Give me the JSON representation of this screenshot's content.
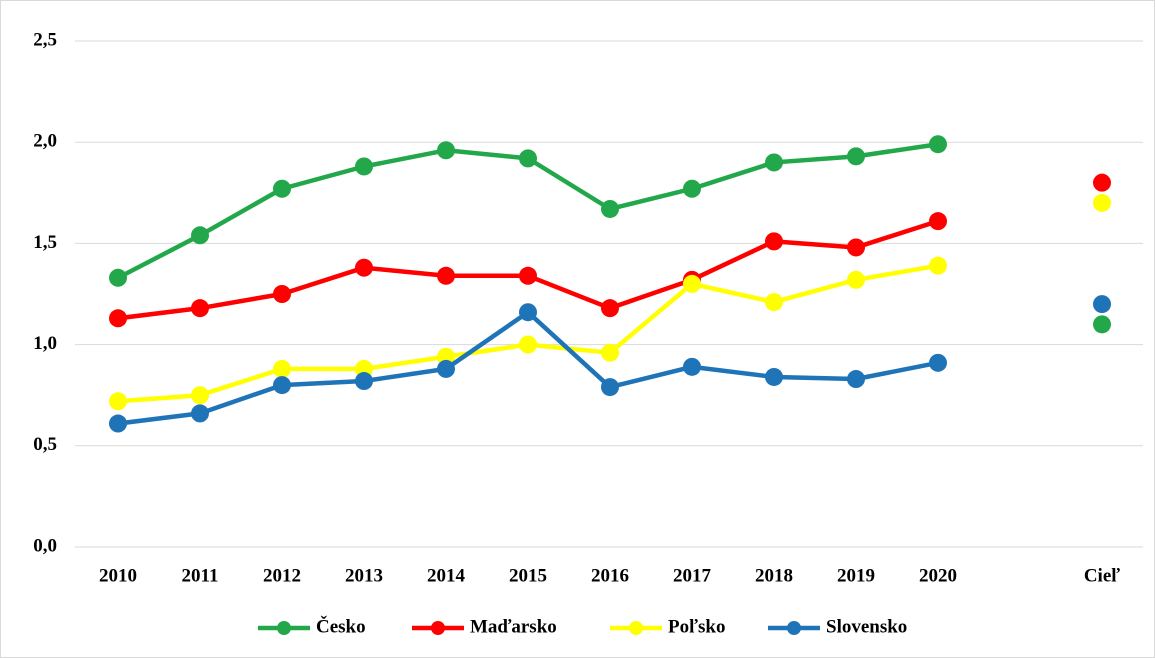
{
  "chart_data": {
    "type": "line",
    "categories": [
      "2010",
      "2011",
      "2012",
      "2013",
      "2014",
      "2015",
      "2016",
      "2017",
      "2018",
      "2019",
      "2020",
      null,
      "Cieľ"
    ],
    "series": [
      {
        "name": "Česko",
        "color": "#22a84a",
        "values": [
          1.33,
          1.54,
          1.77,
          1.88,
          1.96,
          1.92,
          1.67,
          1.77,
          1.9,
          1.93,
          1.99,
          null,
          1.1
        ]
      },
      {
        "name": "Maďarsko",
        "color": "#ff0000",
        "values": [
          1.13,
          1.18,
          1.25,
          1.38,
          1.34,
          1.34,
          1.18,
          1.32,
          1.51,
          1.48,
          1.61,
          null,
          1.8
        ]
      },
      {
        "name": "Poľsko",
        "color": "#ffff00",
        "values": [
          0.72,
          0.75,
          0.88,
          0.88,
          0.94,
          1.0,
          0.96,
          1.3,
          1.21,
          1.32,
          1.39,
          null,
          1.7
        ]
      },
      {
        "name": "Slovensko",
        "color": "#1f74b8",
        "values": [
          0.61,
          0.66,
          0.8,
          0.82,
          0.88,
          1.16,
          0.79,
          0.89,
          0.84,
          0.83,
          0.91,
          null,
          1.2
        ]
      }
    ],
    "ylim": [
      0,
      2.5
    ],
    "yticks": [
      {
        "value": 0,
        "label": "0,0"
      },
      {
        "value": 0.5,
        "label": "0,5"
      },
      {
        "value": 1,
        "label": "1,0"
      },
      {
        "value": 1.5,
        "label": "1,5"
      },
      {
        "value": 2,
        "label": "2,0"
      },
      {
        "value": 2.5,
        "label": "2,5"
      }
    ],
    "grid": true,
    "legend": "bottom"
  }
}
